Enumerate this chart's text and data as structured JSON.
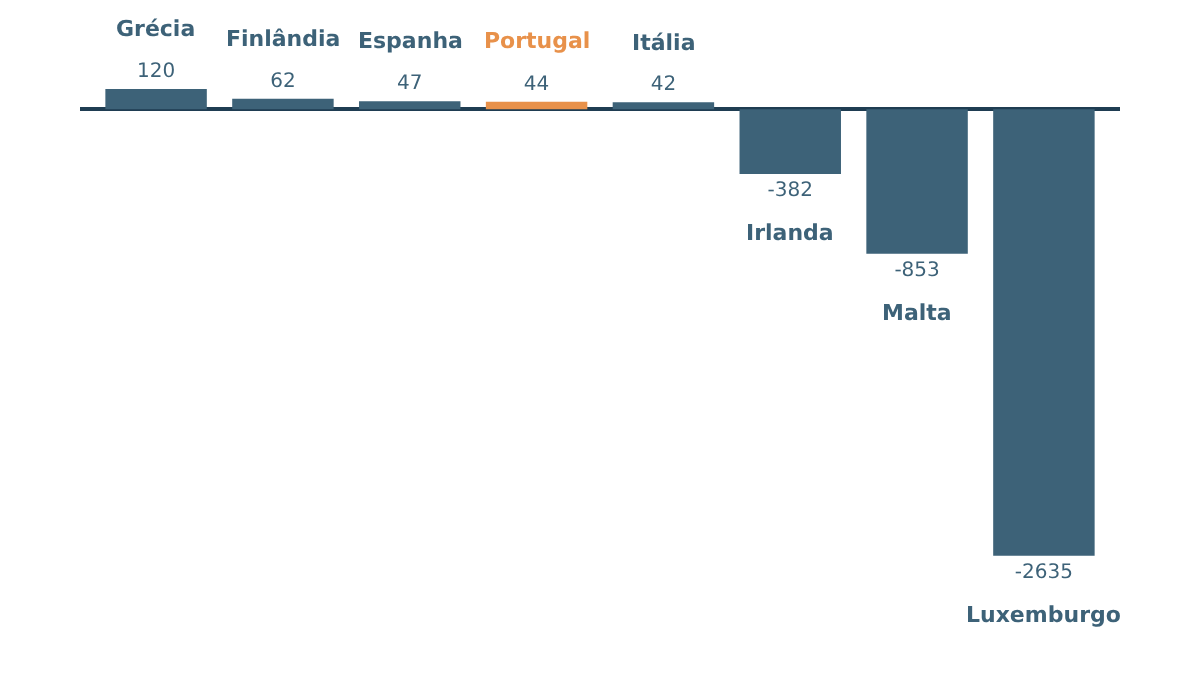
{
  "chart_data": {
    "type": "bar",
    "categories": [
      "Grécia",
      "Finlândia",
      "Espanha",
      "Portugal",
      "Itália",
      "Irlanda",
      "Malta",
      "Luxemburgo"
    ],
    "values": [
      120,
      62,
      47,
      44,
      42,
      -382,
      -853,
      -2635
    ],
    "colors": [
      "#3d6278",
      "#3d6278",
      "#3d6278",
      "#e8914a",
      "#3d6278",
      "#3d6278",
      "#3d6278",
      "#3d6278"
    ],
    "data_labels": true
  }
}
